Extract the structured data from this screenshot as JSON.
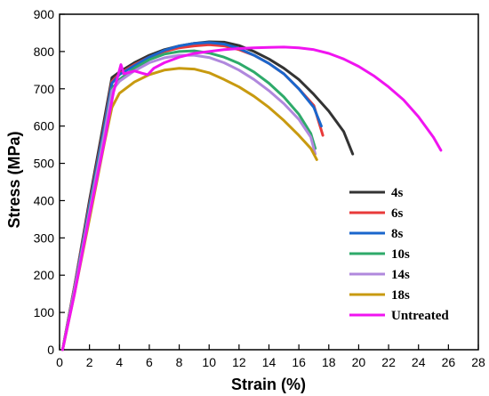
{
  "chart_data": {
    "type": "line",
    "xlabel": "Strain (%)",
    "ylabel": "Stress (MPa)",
    "xlim": [
      0,
      28
    ],
    "ylim": [
      0,
      900
    ],
    "xticks": [
      0,
      2,
      4,
      6,
      8,
      10,
      12,
      14,
      16,
      18,
      20,
      22,
      24,
      26,
      28
    ],
    "yticks": [
      0,
      100,
      200,
      300,
      400,
      500,
      600,
      700,
      800,
      900
    ],
    "legend_position": "right",
    "series": [
      {
        "name": "4s",
        "color": "#333333",
        "points": [
          [
            0.2,
            0
          ],
          [
            1,
            170
          ],
          [
            2,
            400
          ],
          [
            3,
            620
          ],
          [
            3.5,
            730
          ],
          [
            4,
            745
          ],
          [
            5,
            770
          ],
          [
            6,
            790
          ],
          [
            7,
            805
          ],
          [
            8,
            815
          ],
          [
            9,
            822
          ],
          [
            10,
            826
          ],
          [
            11,
            825
          ],
          [
            12,
            816
          ],
          [
            13,
            800
          ],
          [
            14,
            780
          ],
          [
            15,
            755
          ],
          [
            16,
            725
          ],
          [
            17,
            685
          ],
          [
            18,
            640
          ],
          [
            19,
            585
          ],
          [
            19.6,
            525
          ]
        ]
      },
      {
        "name": "6s",
        "color": "#e83a3a",
        "points": [
          [
            0.2,
            0
          ],
          [
            1,
            170
          ],
          [
            2,
            390
          ],
          [
            3,
            605
          ],
          [
            3.5,
            720
          ],
          [
            4,
            740
          ],
          [
            5,
            765
          ],
          [
            6,
            785
          ],
          [
            7,
            800
          ],
          [
            8,
            810
          ],
          [
            9,
            815
          ],
          [
            10,
            818
          ],
          [
            11,
            815
          ],
          [
            12,
            805
          ],
          [
            13,
            790
          ],
          [
            14,
            768
          ],
          [
            15,
            740
          ],
          [
            16,
            700
          ],
          [
            17,
            655
          ],
          [
            17.6,
            575
          ]
        ]
      },
      {
        "name": "8s",
        "color": "#1a66cc",
        "points": [
          [
            0.2,
            0
          ],
          [
            1,
            165
          ],
          [
            2,
            385
          ],
          [
            3,
            600
          ],
          [
            3.5,
            715
          ],
          [
            4,
            738
          ],
          [
            5,
            762
          ],
          [
            6,
            785
          ],
          [
            7,
            803
          ],
          [
            8,
            815
          ],
          [
            9,
            822
          ],
          [
            10,
            824
          ],
          [
            11,
            820
          ],
          [
            12,
            808
          ],
          [
            13,
            790
          ],
          [
            14,
            768
          ],
          [
            15,
            740
          ],
          [
            16,
            700
          ],
          [
            17,
            650
          ],
          [
            17.5,
            600
          ]
        ]
      },
      {
        "name": "10s",
        "color": "#2eaa6a",
        "points": [
          [
            0.2,
            0
          ],
          [
            1,
            160
          ],
          [
            2,
            375
          ],
          [
            3,
            585
          ],
          [
            3.5,
            700
          ],
          [
            4,
            725
          ],
          [
            5,
            755
          ],
          [
            6,
            778
          ],
          [
            7,
            793
          ],
          [
            8,
            800
          ],
          [
            9,
            802
          ],
          [
            10,
            796
          ],
          [
            11,
            785
          ],
          [
            12,
            768
          ],
          [
            13,
            745
          ],
          [
            14,
            715
          ],
          [
            15,
            678
          ],
          [
            16,
            632
          ],
          [
            16.8,
            580
          ],
          [
            17.1,
            540
          ]
        ]
      },
      {
        "name": "14s",
        "color": "#b088dd",
        "points": [
          [
            0.2,
            0
          ],
          [
            1,
            160
          ],
          [
            2,
            370
          ],
          [
            3,
            580
          ],
          [
            3.5,
            695
          ],
          [
            4,
            720
          ],
          [
            5,
            748
          ],
          [
            6,
            770
          ],
          [
            7,
            783
          ],
          [
            8,
            790
          ],
          [
            9,
            790
          ],
          [
            10,
            784
          ],
          [
            11,
            770
          ],
          [
            12,
            750
          ],
          [
            13,
            725
          ],
          [
            14,
            695
          ],
          [
            15,
            660
          ],
          [
            16,
            618
          ],
          [
            16.8,
            570
          ],
          [
            17.1,
            525
          ]
        ]
      },
      {
        "name": "18s",
        "color": "#c89a10",
        "points": [
          [
            0.2,
            0
          ],
          [
            1,
            150
          ],
          [
            2,
            350
          ],
          [
            3,
            555
          ],
          [
            3.5,
            650
          ],
          [
            4,
            688
          ],
          [
            5,
            718
          ],
          [
            6,
            738
          ],
          [
            7,
            750
          ],
          [
            8,
            755
          ],
          [
            9,
            753
          ],
          [
            10,
            743
          ],
          [
            11,
            725
          ],
          [
            12,
            705
          ],
          [
            13,
            680
          ],
          [
            14,
            650
          ],
          [
            15,
            615
          ],
          [
            16,
            575
          ],
          [
            16.8,
            540
          ],
          [
            17.2,
            510
          ]
        ]
      },
      {
        "name": "Untreated",
        "color": "#f014f0",
        "points": [
          [
            0.2,
            0
          ],
          [
            1,
            150
          ],
          [
            2,
            360
          ],
          [
            3,
            560
          ],
          [
            3.6,
            690
          ],
          [
            4.1,
            765
          ],
          [
            4.3,
            740
          ],
          [
            5,
            748
          ],
          [
            5.5,
            742
          ],
          [
            5.9,
            738
          ],
          [
            6.3,
            755
          ],
          [
            7,
            770
          ],
          [
            8,
            785
          ],
          [
            9,
            795
          ],
          [
            10,
            800
          ],
          [
            11,
            805
          ],
          [
            12,
            808
          ],
          [
            13,
            810
          ],
          [
            14,
            811
          ],
          [
            15,
            812
          ],
          [
            16,
            810
          ],
          [
            17,
            805
          ],
          [
            18,
            795
          ],
          [
            19,
            780
          ],
          [
            20,
            760
          ],
          [
            21,
            735
          ],
          [
            22,
            705
          ],
          [
            23,
            670
          ],
          [
            24,
            625
          ],
          [
            25,
            570
          ],
          [
            25.5,
            535
          ]
        ]
      }
    ]
  }
}
